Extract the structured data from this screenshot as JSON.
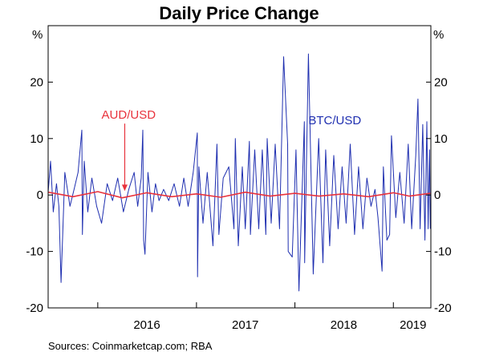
{
  "chart_data": {
    "type": "line",
    "title": "Daily Price Change",
    "unit_left": "%",
    "unit_right": "%",
    "ylim": [
      -20,
      30
    ],
    "yticks": [
      -20,
      -10,
      0,
      10,
      20
    ],
    "ytick_labels": [
      "-20",
      "-10",
      "0",
      "10",
      "20"
    ],
    "xlim": [
      "2015-07-01",
      "2019-05-20"
    ],
    "year_labels": [
      {
        "label": "2016",
        "x": "2016-07-01"
      },
      {
        "label": "2017",
        "x": "2017-07-01"
      },
      {
        "label": "2018",
        "x": "2018-07-01"
      },
      {
        "label": "2019",
        "x": "2019-03-15"
      }
    ],
    "year_boundaries": [
      "2016-01-01",
      "2017-01-01",
      "2018-01-01",
      "2019-01-01"
    ],
    "grid": false,
    "annotations": [
      {
        "text": "AUD/USD",
        "color": "#e8323c",
        "anchor": "2016-04-10",
        "label_x": "2016-01-15",
        "label_y": 13.5,
        "arrow_to": 0.7
      },
      {
        "text": "BTC/USD",
        "color": "#1f2fb0",
        "anchor": "2018-02-20",
        "label_x": "2018-02-20",
        "label_y": 12.5
      }
    ],
    "series": [
      {
        "name": "BTC/USD",
        "color": "#1f2fb0",
        "x": [
          "2015-07-01",
          "2015-07-10",
          "2015-07-20",
          "2015-08-01",
          "2015-08-10",
          "2015-08-18",
          "2015-09-01",
          "2015-09-20",
          "2015-10-05",
          "2015-10-20",
          "2015-11-03",
          "2015-11-05",
          "2015-11-12",
          "2015-11-25",
          "2015-12-10",
          "2015-12-28",
          "2016-01-15",
          "2016-02-05",
          "2016-02-25",
          "2016-03-15",
          "2016-04-05",
          "2016-04-25",
          "2016-05-15",
          "2016-05-28",
          "2016-06-10",
          "2016-06-16",
          "2016-06-19",
          "2016-06-24",
          "2016-07-05",
          "2016-07-20",
          "2016-08-02",
          "2016-08-15",
          "2016-09-01",
          "2016-09-20",
          "2016-10-10",
          "2016-10-30",
          "2016-11-15",
          "2016-12-01",
          "2016-12-20",
          "2017-01-04",
          "2017-01-05",
          "2017-01-10",
          "2017-01-25",
          "2017-02-10",
          "2017-03-03",
          "2017-03-18",
          "2017-03-25",
          "2017-04-10",
          "2017-05-01",
          "2017-05-20",
          "2017-05-25",
          "2017-06-05",
          "2017-06-20",
          "2017-07-01",
          "2017-07-16",
          "2017-07-20",
          "2017-08-05",
          "2017-08-20",
          "2017-09-02",
          "2017-09-15",
          "2017-09-20",
          "2017-10-05",
          "2017-10-20",
          "2017-11-05",
          "2017-11-20",
          "2017-12-05",
          "2017-12-07",
          "2017-12-22",
          "2018-01-05",
          "2018-01-16",
          "2018-02-05",
          "2018-02-06",
          "2018-02-20",
          "2018-03-10",
          "2018-03-30",
          "2018-04-15",
          "2018-04-25",
          "2018-05-10",
          "2018-05-25",
          "2018-06-10",
          "2018-06-25",
          "2018-07-10",
          "2018-07-25",
          "2018-08-10",
          "2018-08-25",
          "2018-09-10",
          "2018-09-25",
          "2018-10-10",
          "2018-10-25",
          "2018-11-05",
          "2018-11-20",
          "2018-11-25",
          "2018-12-08",
          "2018-12-18",
          "2018-12-25",
          "2019-01-10",
          "2019-01-25",
          "2019-02-10",
          "2019-02-25",
          "2019-03-10",
          "2019-03-25",
          "2019-04-02",
          "2019-04-10",
          "2019-04-20",
          "2019-04-28",
          "2019-05-05",
          "2019-05-10",
          "2019-05-15",
          "2019-05-18"
        ],
        "values": [
          0.5,
          6,
          -3,
          2,
          -2,
          -15.5,
          4,
          -2,
          1,
          4,
          11.5,
          -7,
          6,
          -3,
          3,
          -2,
          -5,
          2,
          -1,
          3,
          -3,
          1,
          4,
          -2,
          3,
          11.5,
          -8,
          -10.5,
          4,
          -3,
          2,
          -1,
          1,
          -1,
          2,
          -2,
          3,
          -2,
          4,
          11,
          -14.5,
          5,
          -5,
          4,
          -9,
          9,
          -7,
          3,
          5,
          -6,
          10,
          -9,
          5,
          -6,
          9.5,
          -7,
          8,
          -6,
          8,
          -7,
          10,
          -5,
          9,
          -6,
          24.5,
          9,
          -10,
          -11,
          8,
          -17,
          13,
          -12,
          25,
          -14,
          10,
          -12,
          8,
          -9,
          7,
          -6,
          5,
          -5,
          9,
          -7,
          5,
          -6,
          3,
          -2,
          1,
          -4,
          -13.5,
          5,
          -8,
          -7,
          10.5,
          -4,
          4,
          -5,
          9,
          -6,
          7,
          17,
          -6,
          12.5,
          -8,
          13,
          -6,
          8,
          -6
        ]
      },
      {
        "name": "AUD/USD",
        "color": "#e8323c",
        "x": [
          "2015-07-01",
          "2015-10-01",
          "2016-01-01",
          "2016-04-01",
          "2016-07-01",
          "2016-10-01",
          "2017-01-01",
          "2017-04-01",
          "2017-07-01",
          "2017-10-01",
          "2018-01-01",
          "2018-04-01",
          "2018-07-01",
          "2018-10-01",
          "2019-01-01",
          "2019-03-01",
          "2019-05-18"
        ],
        "values": [
          0.5,
          -0.3,
          0.6,
          -0.5,
          0.4,
          -0.3,
          0.2,
          -0.4,
          0.5,
          -0.2,
          0.3,
          -0.2,
          0.2,
          -0.3,
          0.4,
          -0.2,
          0.3
        ]
      }
    ]
  },
  "source_text": "Sources:   Coinmarketcap.com; RBA"
}
